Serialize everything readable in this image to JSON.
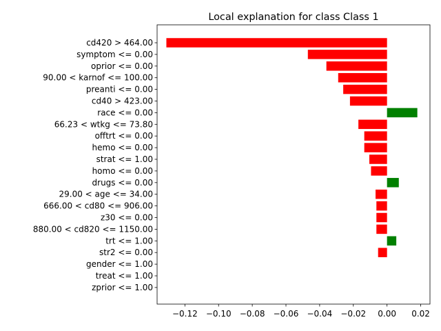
{
  "chart_data": {
    "type": "bar",
    "orientation": "horizontal",
    "title": "Local explanation for class Class 1",
    "xlabel": "",
    "ylabel": "",
    "xlim": [
      -0.1365,
      0.0255
    ],
    "xticks": [
      -0.12,
      -0.1,
      -0.08,
      -0.06,
      -0.04,
      -0.02,
      0.0,
      0.02
    ],
    "xtick_labels": [
      "−0.12",
      "−0.10",
      "−0.08",
      "−0.06",
      "−0.04",
      "−0.02",
      "0.00",
      "0.02"
    ],
    "colors": {
      "positive": "#008000",
      "negative": "#ff0000"
    },
    "grid": false,
    "categories": [
      "cd420 > 464.00",
      "symptom <= 0.00",
      "oprior <= 0.00",
      "90.00 < karnof <= 100.00",
      "preanti <= 0.00",
      "cd40 > 423.00",
      "race <= 0.00",
      "66.23 < wtkg <= 73.80",
      "offtrt <= 0.00",
      "hemo <= 0.00",
      "strat <= 1.00",
      "homo <= 0.00",
      "drugs <= 0.00",
      "29.00 < age <= 34.00",
      "666.00 < cd80 <= 906.00",
      "z30 <= 0.00",
      "880.00 < cd820 <= 1150.00",
      "trt <= 1.00",
      "str2 <= 0.00",
      "gender <= 1.00",
      "treat <= 1.00",
      "zprior <= 1.00"
    ],
    "values": [
      -0.131,
      -0.047,
      -0.036,
      -0.029,
      -0.026,
      -0.022,
      0.018,
      -0.017,
      -0.0135,
      -0.0135,
      -0.0105,
      -0.0095,
      0.007,
      -0.0068,
      -0.0063,
      -0.0063,
      -0.0063,
      0.0055,
      -0.0053,
      0.0,
      0.0,
      0.0
    ]
  }
}
